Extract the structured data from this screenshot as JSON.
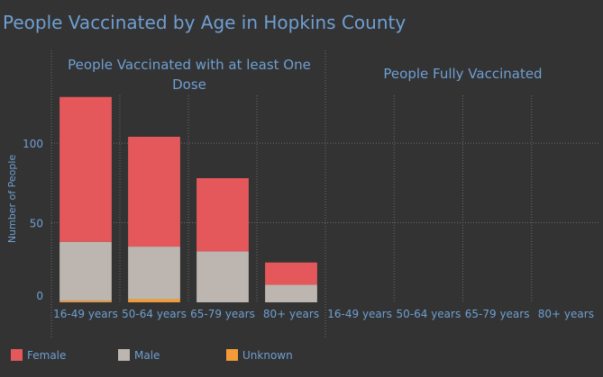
{
  "title": "People Vaccinated by Age in Hopkins County",
  "colors": {
    "background": "#333333",
    "Female": "#e4585c",
    "Male": "#bdb6b0",
    "Unknown": "#f29b38",
    "text": "#6f9fd3",
    "grid": "#6b6b6b"
  },
  "chart_data": [
    {
      "type": "bar",
      "stacked": true,
      "title": "People Vaccinated with at least One Dose",
      "ylabel": "Number of People",
      "ylim": [
        0,
        130
      ],
      "yticks": [
        0,
        50,
        100
      ],
      "categories": [
        "16-49 years",
        "50-64 years",
        "65-79 years",
        "80+ years"
      ],
      "series": [
        {
          "name": "Unknown",
          "values": [
            1,
            2,
            0,
            0
          ]
        },
        {
          "name": "Male",
          "values": [
            37,
            33,
            32,
            11
          ]
        },
        {
          "name": "Female",
          "values": [
            91,
            69,
            46,
            14
          ]
        }
      ]
    },
    {
      "type": "bar",
      "stacked": true,
      "title": "People Fully Vaccinated",
      "ylim": [
        0,
        130
      ],
      "categories": [
        "16-49 years",
        "50-64 years",
        "65-79 years",
        "80+ years"
      ],
      "series": []
    }
  ],
  "legend": {
    "position": "bottom",
    "items": [
      {
        "label": "Female",
        "color": "#e4585c"
      },
      {
        "label": "Male",
        "color": "#bdb6b0"
      },
      {
        "label": "Unknown",
        "color": "#f29b38"
      }
    ]
  }
}
